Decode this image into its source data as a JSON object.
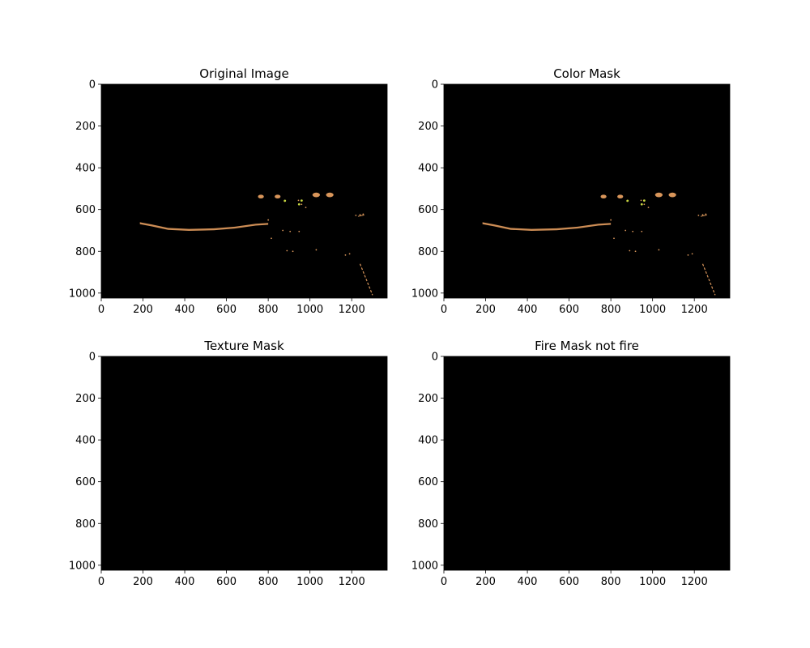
{
  "chart_data": [
    {
      "type": "image",
      "title": "Original Image",
      "xlim": [
        0,
        1370
      ],
      "ylim": [
        1024,
        0
      ],
      "xticks": [
        0,
        200,
        400,
        600,
        800,
        1000,
        1200
      ],
      "yticks": [
        0,
        200,
        400,
        600,
        800,
        1000
      ],
      "background": "#000000",
      "content": "sparse",
      "highlight_color": "#d8955a",
      "accent_color": "#c6d640"
    },
    {
      "type": "image",
      "title": "Color Mask",
      "xlim": [
        0,
        1370
      ],
      "ylim": [
        1024,
        0
      ],
      "xticks": [
        0,
        200,
        400,
        600,
        800,
        1000,
        1200
      ],
      "yticks": [
        0,
        200,
        400,
        600,
        800,
        1000
      ],
      "background": "#000000",
      "content": "sparse",
      "highlight_color": "#d8955a",
      "accent_color": "#c6d640"
    },
    {
      "type": "image",
      "title": "Texture Mask",
      "xlim": [
        0,
        1370
      ],
      "ylim": [
        1024,
        0
      ],
      "xticks": [
        0,
        200,
        400,
        600,
        800,
        1000,
        1200
      ],
      "yticks": [
        0,
        200,
        400,
        600,
        800,
        1000
      ],
      "background": "#000000",
      "content": "empty"
    },
    {
      "type": "image",
      "title": "Fire Mask not fire",
      "xlim": [
        0,
        1370
      ],
      "ylim": [
        1024,
        0
      ],
      "xticks": [
        0,
        200,
        400,
        600,
        800,
        1000,
        1200
      ],
      "yticks": [
        0,
        200,
        400,
        600,
        800,
        1000
      ],
      "background": "#000000",
      "content": "empty"
    }
  ]
}
